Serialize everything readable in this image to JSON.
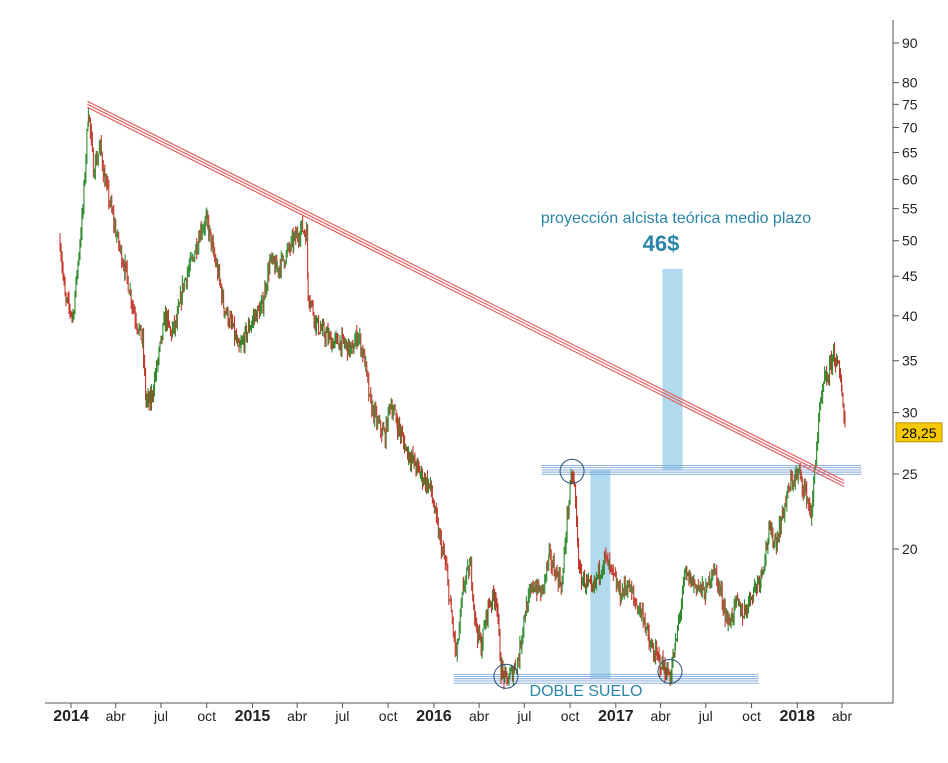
{
  "chart_data": {
    "type": "line",
    "y_scale": "log",
    "ylim": [
      12,
      95
    ],
    "xlim": [
      "2013-12-08",
      "2018-05-15"
    ],
    "y_ticks": [
      20,
      25,
      30,
      35,
      40,
      45,
      50,
      55,
      60,
      65,
      70,
      75,
      80,
      90
    ],
    "x_ticks": [
      {
        "date": "2014-01-01",
        "label": "2014",
        "year": true
      },
      {
        "date": "2014-04-01",
        "label": "abr"
      },
      {
        "date": "2014-07-01",
        "label": "jul"
      },
      {
        "date": "2014-10-01",
        "label": "oct"
      },
      {
        "date": "2015-01-01",
        "label": "2015",
        "year": true
      },
      {
        "date": "2015-04-01",
        "label": "abr"
      },
      {
        "date": "2015-07-01",
        "label": "jul"
      },
      {
        "date": "2015-10-01",
        "label": "oct"
      },
      {
        "date": "2016-01-01",
        "label": "2016",
        "year": true
      },
      {
        "date": "2016-04-01",
        "label": "abr"
      },
      {
        "date": "2016-07-01",
        "label": "jul"
      },
      {
        "date": "2016-10-01",
        "label": "oct"
      },
      {
        "date": "2017-01-01",
        "label": "2017",
        "year": true
      },
      {
        "date": "2017-04-01",
        "label": "abr"
      },
      {
        "date": "2017-07-01",
        "label": "jul"
      },
      {
        "date": "2017-10-01",
        "label": "oct"
      },
      {
        "date": "2018-01-01",
        "label": "2018",
        "year": true
      },
      {
        "date": "2018-04-01",
        "label": "abr"
      }
    ],
    "price_path": [
      [
        "2013-12-10",
        50
      ],
      [
        "2013-12-20",
        42
      ],
      [
        "2014-01-05",
        40
      ],
      [
        "2014-01-25",
        55
      ],
      [
        "2014-02-05",
        74
      ],
      [
        "2014-02-15",
        62
      ],
      [
        "2014-03-01",
        66
      ],
      [
        "2014-03-10",
        60
      ],
      [
        "2014-03-20",
        56
      ],
      [
        "2014-04-05",
        50
      ],
      [
        "2014-04-20",
        46
      ],
      [
        "2014-05-10",
        40
      ],
      [
        "2014-05-25",
        37
      ],
      [
        "2014-06-01",
        31
      ],
      [
        "2014-06-10",
        31
      ],
      [
        "2014-06-25",
        35
      ],
      [
        "2014-07-10",
        40
      ],
      [
        "2014-07-20",
        38
      ],
      [
        "2014-08-01",
        39
      ],
      [
        "2014-08-15",
        44
      ],
      [
        "2014-09-01",
        47
      ],
      [
        "2014-09-20",
        52
      ],
      [
        "2014-10-01",
        53
      ],
      [
        "2014-10-10",
        50
      ],
      [
        "2014-10-15",
        48
      ],
      [
        "2014-10-25",
        45
      ],
      [
        "2014-11-05",
        41
      ],
      [
        "2014-11-20",
        39
      ],
      [
        "2014-12-05",
        36
      ],
      [
        "2014-12-20",
        38
      ],
      [
        "2015-01-05",
        40
      ],
      [
        "2015-01-20",
        41
      ],
      [
        "2015-02-05",
        47
      ],
      [
        "2015-02-20",
        46
      ],
      [
        "2015-03-10",
        48
      ],
      [
        "2015-03-25",
        50
      ],
      [
        "2015-04-10",
        52
      ],
      [
        "2015-04-20",
        51
      ],
      [
        "2015-04-23",
        43
      ],
      [
        "2015-05-10",
        39
      ],
      [
        "2015-05-25",
        38
      ],
      [
        "2015-06-10",
        37
      ],
      [
        "2015-07-01",
        37
      ],
      [
        "2015-07-20",
        36
      ],
      [
        "2015-08-01",
        38
      ],
      [
        "2015-08-15",
        35
      ],
      [
        "2015-08-25",
        31
      ],
      [
        "2015-09-10",
        29
      ],
      [
        "2015-09-25",
        28
      ],
      [
        "2015-10-05",
        31
      ],
      [
        "2015-10-20",
        29
      ],
      [
        "2015-11-05",
        27
      ],
      [
        "2015-11-20",
        26
      ],
      [
        "2015-12-05",
        25
      ],
      [
        "2015-12-25",
        24
      ],
      [
        "2016-01-10",
        21
      ],
      [
        "2016-01-25",
        19
      ],
      [
        "2016-02-05",
        16.5
      ],
      [
        "2016-02-15",
        14.5
      ],
      [
        "2016-03-01",
        18
      ],
      [
        "2016-03-15",
        19
      ],
      [
        "2016-03-25",
        16
      ],
      [
        "2016-04-05",
        15
      ],
      [
        "2016-04-20",
        17
      ],
      [
        "2016-05-05",
        17.5
      ],
      [
        "2016-05-15",
        14
      ],
      [
        "2016-05-25",
        13.5
      ],
      [
        "2016-06-05",
        13.8
      ],
      [
        "2016-06-20",
        14.5
      ],
      [
        "2016-07-01",
        16.5
      ],
      [
        "2016-07-20",
        18
      ],
      [
        "2016-08-05",
        17.5
      ],
      [
        "2016-08-20",
        19.5
      ],
      [
        "2016-09-05",
        18.5
      ],
      [
        "2016-09-15",
        18
      ],
      [
        "2016-09-25",
        22
      ],
      [
        "2016-10-05",
        25
      ],
      [
        "2016-10-10",
        24
      ],
      [
        "2016-10-20",
        18.5
      ],
      [
        "2016-11-05",
        18
      ],
      [
        "2016-11-15",
        17.5
      ],
      [
        "2016-11-25",
        18.5
      ],
      [
        "2016-12-10",
        19.5
      ],
      [
        "2016-12-25",
        18.5
      ],
      [
        "2017-01-10",
        17.5
      ],
      [
        "2017-01-25",
        18
      ],
      [
        "2017-02-10",
        17
      ],
      [
        "2017-02-25",
        16.5
      ],
      [
        "2017-03-10",
        15
      ],
      [
        "2017-03-25",
        14.5
      ],
      [
        "2017-04-10",
        14
      ],
      [
        "2017-04-20",
        13.7
      ],
      [
        "2017-05-01",
        15
      ],
      [
        "2017-05-20",
        18.5
      ],
      [
        "2017-06-10",
        18
      ],
      [
        "2017-07-01",
        17.5
      ],
      [
        "2017-07-15",
        19
      ],
      [
        "2017-08-01",
        17.5
      ],
      [
        "2017-08-15",
        16
      ],
      [
        "2017-09-01",
        17
      ],
      [
        "2017-09-15",
        16.5
      ],
      [
        "2017-10-01",
        17.5
      ],
      [
        "2017-10-20",
        18.5
      ],
      [
        "2017-11-05",
        21
      ],
      [
        "2017-11-20",
        20.5
      ],
      [
        "2017-12-05",
        22.5
      ],
      [
        "2017-12-20",
        24.5
      ],
      [
        "2018-01-05",
        25
      ],
      [
        "2018-01-20",
        23.5
      ],
      [
        "2018-01-30",
        22
      ],
      [
        "2018-02-05",
        25.5
      ],
      [
        "2018-02-15",
        30
      ],
      [
        "2018-02-25",
        33
      ],
      [
        "2018-03-05",
        33.5
      ],
      [
        "2018-03-15",
        36
      ],
      [
        "2018-03-25",
        34
      ],
      [
        "2018-04-01",
        32
      ],
      [
        "2018-04-08",
        28.25
      ]
    ],
    "resistance_line": {
      "from": [
        "2014-02-03",
        75
      ],
      "to": [
        "2018-04-05",
        24.3
      ],
      "color": "#e06060"
    },
    "support_lines": [
      {
        "level": 25.3,
        "from": "2016-08-05",
        "to": "2018-05-10",
        "color": "#7ba7d8"
      },
      {
        "level": 13.6,
        "from": "2016-02-10",
        "to": "2017-10-15",
        "color": "#7ba7d8"
      }
    ],
    "projection_bars": [
      {
        "date": "2016-12-01",
        "low": 13.6,
        "high": 25.3
      },
      {
        "date": "2017-04-25",
        "low": 25.3,
        "high": 46
      }
    ],
    "bottom_markers": [
      {
        "date": "2016-05-25",
        "value": 13.7
      },
      {
        "date": "2016-10-05",
        "value": 25.2
      },
      {
        "date": "2017-04-20",
        "value": 13.9
      }
    ],
    "annotations": {
      "projection_title": "proyección alcista teórica medio plazo",
      "projection_value": "46$",
      "pattern_label": "DOBLE SUELO"
    },
    "last_price": {
      "label": "28,25",
      "value": 28.25,
      "color": "#f5c800"
    },
    "colors": {
      "up": "#2e8b2e",
      "down": "#c0392b",
      "bars": "#a9d6ec",
      "text_accent": "#2a86a8"
    }
  }
}
